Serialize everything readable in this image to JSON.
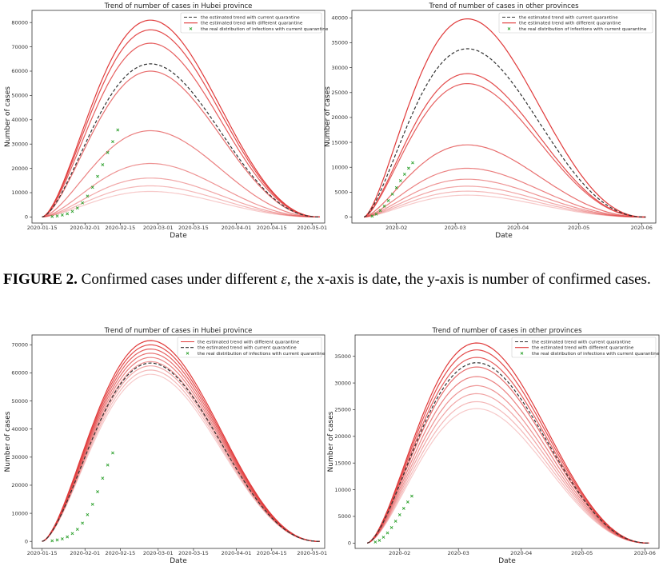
{
  "caption": {
    "figure_label": "FIGURE 2.",
    "text_before_symbol": "Confirmed cases under different",
    "symbol": "ε",
    "text_after_symbol": ", the x-axis is date, the y-axis is number of confirmed cases."
  },
  "colors": {
    "current_trend": "#333333",
    "different_trend": "#e03a3a",
    "real_points": "#2ca02c"
  },
  "chart_data": [
    {
      "type": "line",
      "title": "Trend of number of cases in Hubei province",
      "xlabel": "Date",
      "ylabel": "Number of cases",
      "x_ticks": [
        "2020-01-15",
        "2020-02-01",
        "2020-02-15",
        "2020-03-01",
        "2020-03-15",
        "2020-04-01",
        "2020-04-15",
        "2020-05-01"
      ],
      "y_ticks": [
        0,
        10000,
        20000,
        30000,
        40000,
        50000,
        60000,
        70000,
        80000
      ],
      "ylim": [
        -2500,
        85000
      ],
      "xlim": [
        "2020-01-11",
        "2020-05-06"
      ],
      "legend": [
        "the estimated trend with current quarantine",
        "the estimated trend with different quarantine",
        "the real distribution of infections with current quarantine"
      ],
      "legend_placement": "top-right",
      "start": "2020-01-15",
      "end": "2020-05-04",
      "peak_date": "2020-02-27",
      "current_peak": 63000,
      "different_peaks": [
        81000,
        77000,
        71500,
        60000,
        35500,
        22000,
        16000,
        12800,
        10500
      ],
      "real_points": [
        [
          "2020-01-19",
          200
        ],
        [
          "2020-01-21",
          400
        ],
        [
          "2020-01-23",
          800
        ],
        [
          "2020-01-25",
          1300
        ],
        [
          "2020-01-27",
          2300
        ],
        [
          "2020-01-29",
          3700
        ],
        [
          "2020-01-31",
          5800
        ],
        [
          "2020-02-02",
          8600
        ],
        [
          "2020-02-04",
          12200
        ],
        [
          "2020-02-06",
          16700
        ],
        [
          "2020-02-08",
          21500
        ],
        [
          "2020-02-10",
          26500
        ],
        [
          "2020-02-12",
          31000
        ],
        [
          "2020-02-14",
          35800
        ]
      ]
    },
    {
      "type": "line",
      "title": "Trend of number of cases in other provinces",
      "xlabel": "Date",
      "ylabel": "Number of cases",
      "x_ticks": [
        "2020-02",
        "2020-03",
        "2020-04",
        "2020-05",
        "2020-06"
      ],
      "y_ticks": [
        0,
        5000,
        10000,
        15000,
        20000,
        25000,
        30000,
        35000,
        40000
      ],
      "ylim": [
        -1200,
        41500
      ],
      "xlim": [
        "2020-01-10",
        "2020-06-08"
      ],
      "legend": [
        "the estimated trend with current quarantine",
        "the estimated trend with different quarantine",
        "the real distribution of infections with current quarantine"
      ],
      "legend_placement": "top-right",
      "start": "2020-01-16",
      "end": "2020-06-03",
      "peak_date": "2020-03-07",
      "current_peak": 33800,
      "different_peaks": [
        39800,
        28800,
        26800,
        14500,
        9800,
        7600,
        6200,
        5200,
        4400
      ],
      "real_points": [
        [
          "2020-01-20",
          200
        ],
        [
          "2020-01-22",
          600
        ],
        [
          "2020-01-24",
          1300
        ],
        [
          "2020-01-26",
          2200
        ],
        [
          "2020-01-28",
          3300
        ],
        [
          "2020-01-30",
          4600
        ],
        [
          "2020-02-01",
          5900
        ],
        [
          "2020-02-03",
          7300
        ],
        [
          "2020-02-05",
          8600
        ],
        [
          "2020-02-07",
          9800
        ],
        [
          "2020-02-09",
          10900
        ]
      ]
    },
    {
      "type": "line",
      "title": "Trend of number of cases in Hubei province",
      "xlabel": "Date",
      "ylabel": "Number of cases",
      "x_ticks": [
        "2020-01-15",
        "2020-02-01",
        "2020-02-15",
        "2020-03-01",
        "2020-03-15",
        "2020-04-01",
        "2020-04-15",
        "2020-05-01"
      ],
      "y_ticks": [
        0,
        10000,
        20000,
        30000,
        40000,
        50000,
        60000,
        70000
      ],
      "ylim": [
        -2500,
        73500
      ],
      "xlim": [
        "2020-01-11",
        "2020-05-06"
      ],
      "legend": [
        "the estimated trend with different quarantine",
        "the estimated trend with current quarantine",
        "the real distribution of infections with current quarantine"
      ],
      "legend_placement": "top-right",
      "start": "2020-01-15",
      "end": "2020-05-04",
      "peak_date": "2020-02-27",
      "current_peak": 63500,
      "different_peaks": [
        71500,
        70000,
        68500,
        67000,
        65500,
        64000,
        62500,
        61000,
        59500
      ],
      "real_points": [
        [
          "2020-01-19",
          200
        ],
        [
          "2020-01-21",
          500
        ],
        [
          "2020-01-23",
          900
        ],
        [
          "2020-01-25",
          1600
        ],
        [
          "2020-01-27",
          2800
        ],
        [
          "2020-01-29",
          4300
        ],
        [
          "2020-01-31",
          6500
        ],
        [
          "2020-02-02",
          9500
        ],
        [
          "2020-02-04",
          13200
        ],
        [
          "2020-02-06",
          17700
        ],
        [
          "2020-02-08",
          22500
        ],
        [
          "2020-02-10",
          27200
        ],
        [
          "2020-02-12",
          31500
        ]
      ]
    },
    {
      "type": "line",
      "title": "Trend of number of cases in other provinces",
      "xlabel": "Date",
      "ylabel": "Number of cases",
      "x_ticks": [
        "2020-02",
        "2020-03",
        "2020-04",
        "2020-05",
        "2020-06"
      ],
      "y_ticks": [
        0,
        5000,
        10000,
        15000,
        20000,
        25000,
        30000,
        35000
      ],
      "ylim": [
        -1000,
        39000
      ],
      "xlim": [
        "2020-01-10",
        "2020-06-08"
      ],
      "legend": [
        "the estimated trend with current quarantine",
        "the estimated trend with different quarantine",
        "the real distribution of infections with current quarantine"
      ],
      "legend_placement": "top-right",
      "start": "2020-01-16",
      "end": "2020-06-03",
      "peak_date": "2020-03-10",
      "current_peak": 33800,
      "different_peaks": [
        37500,
        36200,
        34800,
        33000,
        31200,
        29500,
        28000,
        26500,
        25200
      ],
      "real_points": [
        [
          "2020-01-20",
          200
        ],
        [
          "2020-01-22",
          500
        ],
        [
          "2020-01-24",
          1100
        ],
        [
          "2020-01-26",
          1900
        ],
        [
          "2020-01-28",
          2900
        ],
        [
          "2020-01-30",
          4100
        ],
        [
          "2020-02-01",
          5300
        ],
        [
          "2020-02-03",
          6500
        ],
        [
          "2020-02-05",
          7700
        ],
        [
          "2020-02-07",
          8800
        ]
      ]
    }
  ]
}
